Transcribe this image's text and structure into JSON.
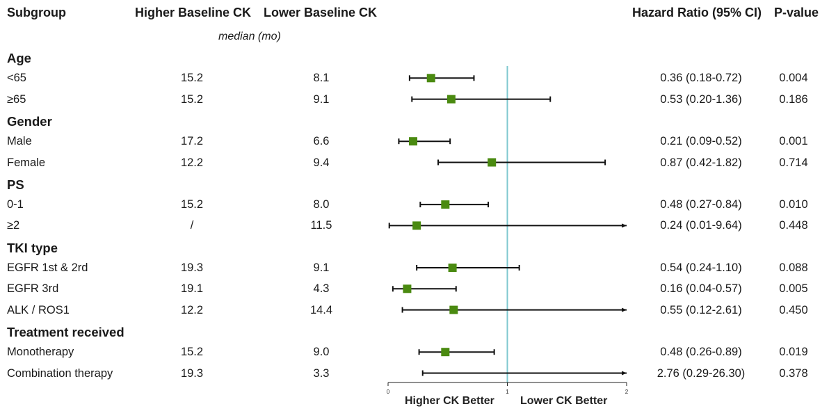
{
  "headers": {
    "subgroup": "Subgroup",
    "higher": "Higher Baseline CK",
    "lower": "Lower Baseline CK",
    "hr": "Hazard Ratio (95% CI)",
    "pvalue": "P-value",
    "median_label": "median (mo)"
  },
  "footer": {
    "left_label": "Higher CK Better",
    "right_label": "Lower CK Better"
  },
  "colors": {
    "marker": "#4a8a10",
    "reference_line": "#7ec8cf",
    "ci_line": "#111111"
  },
  "chart_data": {
    "type": "forest",
    "xlim": [
      0,
      2
    ],
    "xticks": [
      "0",
      "1",
      "2"
    ],
    "reference": 1,
    "rows": [
      {
        "kind": "section",
        "label": "Age"
      },
      {
        "kind": "data",
        "label": "<65",
        "higher": "15.2",
        "lower": "8.1",
        "hr_text": "0.36 (0.18-0.72)",
        "p": "0.004",
        "hr": 0.36,
        "lo": 0.18,
        "hi": 0.72
      },
      {
        "kind": "data",
        "label": "≥65",
        "higher": "15.2",
        "lower": "9.1",
        "hr_text": "0.53 (0.20-1.36)",
        "p": "0.186",
        "hr": 0.53,
        "lo": 0.2,
        "hi": 1.36
      },
      {
        "kind": "section",
        "label": "Gender"
      },
      {
        "kind": "data",
        "label": "Male",
        "higher": "17.2",
        "lower": "6.6",
        "hr_text": "0.21 (0.09-0.52)",
        "p": "0.001",
        "hr": 0.21,
        "lo": 0.09,
        "hi": 0.52
      },
      {
        "kind": "data",
        "label": "Female",
        "higher": "12.2",
        "lower": "9.4",
        "hr_text": "0.87 (0.42-1.82)",
        "p": "0.714",
        "hr": 0.87,
        "lo": 0.42,
        "hi": 1.82
      },
      {
        "kind": "section",
        "label": "PS"
      },
      {
        "kind": "data",
        "label": "0-1",
        "higher": "15.2",
        "lower": "8.0",
        "hr_text": "0.48 (0.27-0.84)",
        "p": "0.010",
        "hr": 0.48,
        "lo": 0.27,
        "hi": 0.84
      },
      {
        "kind": "data",
        "label": "≥2",
        "higher": "/",
        "lower": "11.5",
        "hr_text": "0.24 (0.01-9.64)",
        "p": "0.448",
        "hr": 0.24,
        "lo": 0.01,
        "hi": 9.64
      },
      {
        "kind": "section",
        "label": "TKI type"
      },
      {
        "kind": "data",
        "label": "EGFR 1st & 2rd",
        "higher": "19.3",
        "lower": "9.1",
        "hr_text": "0.54 (0.24-1.10)",
        "p": "0.088",
        "hr": 0.54,
        "lo": 0.24,
        "hi": 1.1
      },
      {
        "kind": "data",
        "label": "EGFR 3rd",
        "higher": "19.1",
        "lower": "4.3",
        "hr_text": "0.16 (0.04-0.57)",
        "p": "0.005",
        "hr": 0.16,
        "lo": 0.04,
        "hi": 0.57
      },
      {
        "kind": "data",
        "label": "ALK / ROS1",
        "higher": "12.2",
        "lower": "14.4",
        "hr_text": "0.55 (0.12-2.61)",
        "p": "0.450",
        "hr": 0.55,
        "lo": 0.12,
        "hi": 2.61
      },
      {
        "kind": "section",
        "label": "Treatment received"
      },
      {
        "kind": "data",
        "label": "Monotherapy",
        "higher": "15.2",
        "lower": "9.0",
        "hr_text": "0.48 (0.26-0.89)",
        "p": "0.019",
        "hr": 0.48,
        "lo": 0.26,
        "hi": 0.89
      },
      {
        "kind": "data",
        "label": "Combination therapy",
        "higher": "19.3",
        "lower": "3.3",
        "hr_text": "2.76 (0.29-26.30)",
        "p": "0.378",
        "hr": 2.76,
        "lo": 0.29,
        "hi": 26.3
      }
    ]
  }
}
